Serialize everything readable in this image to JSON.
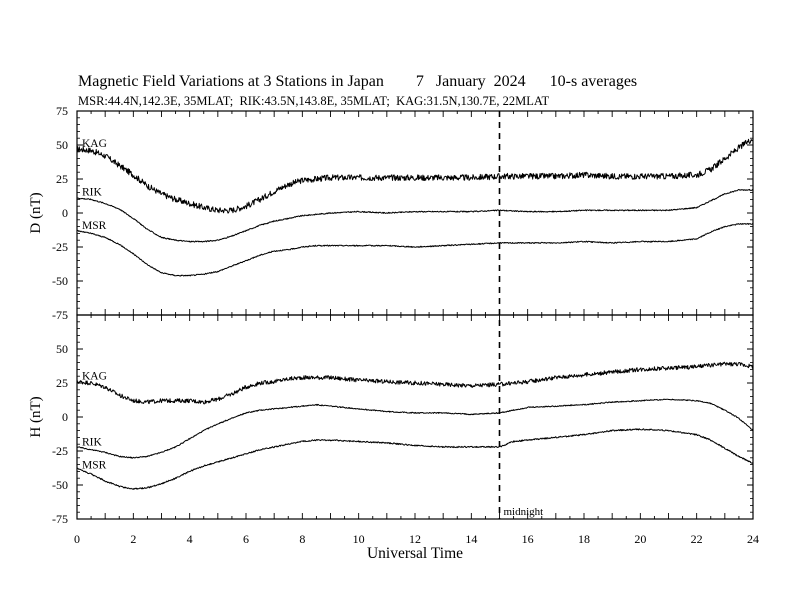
{
  "figure": {
    "title": "Magnetic Field Variations at 3 Stations in Japan        7   January  2024      10-s averages",
    "subtitle": "MSR:44.4N,142.3E, 35MLAT;  RIK:43.5N,143.8E, 35MLAT;  KAG:31.5N,130.7E, 22MLAT"
  },
  "chart_data": [
    {
      "type": "line",
      "panel": "D",
      "ylabel": "D (nT)",
      "ylim": [
        -75,
        75
      ],
      "yticks": [
        -75,
        -50,
        -25,
        0,
        25,
        50,
        75
      ],
      "xlim": [
        0,
        24
      ],
      "xticks": [
        0,
        2,
        4,
        6,
        8,
        10,
        12,
        14,
        16,
        18,
        20,
        22,
        24
      ],
      "grid": false,
      "series": [
        {
          "name": "KAG",
          "noise": 2.2,
          "x": [
            0,
            0.5,
            1,
            1.5,
            2,
            2.5,
            3,
            3.5,
            4,
            4.5,
            5,
            5.5,
            6,
            6.5,
            7,
            7.5,
            8,
            8.5,
            9,
            10,
            11,
            12,
            13,
            14,
            15,
            16,
            17,
            18,
            19,
            20,
            21,
            22,
            22.5,
            23,
            23.5,
            24
          ],
          "values": [
            47,
            46,
            42,
            35,
            28,
            20,
            14,
            10,
            7,
            4,
            2,
            2,
            5,
            10,
            16,
            21,
            24,
            25,
            26,
            26,
            26,
            26,
            26,
            26,
            27,
            27,
            27,
            28,
            27,
            27,
            27,
            28,
            32,
            40,
            48,
            55
          ]
        },
        {
          "name": "RIK",
          "noise": 0.4,
          "x": [
            0,
            0.5,
            1,
            1.5,
            2,
            2.5,
            3,
            3.5,
            4,
            4.5,
            5,
            5.5,
            6,
            6.5,
            7,
            7.5,
            8,
            8.5,
            9,
            10,
            11,
            12,
            13,
            14,
            15,
            16,
            17,
            18,
            19,
            20,
            21,
            22,
            22.5,
            23,
            23.5,
            24
          ],
          "values": [
            11,
            10,
            7,
            3,
            -4,
            -12,
            -18,
            -20,
            -21,
            -21,
            -20,
            -17,
            -13,
            -9,
            -6,
            -4,
            -2,
            -1,
            0,
            1,
            0,
            1,
            1,
            1,
            2,
            1,
            1,
            2,
            2,
            2,
            2,
            4,
            9,
            14,
            17,
            17
          ]
        },
        {
          "name": "MSR",
          "noise": 0.4,
          "x": [
            0,
            0.5,
            1,
            1.5,
            2,
            2.5,
            3,
            3.5,
            4,
            4.5,
            5,
            5.5,
            6,
            6.5,
            7,
            7.5,
            8,
            8.5,
            9,
            10,
            11,
            12,
            13,
            14,
            15,
            16,
            17,
            18,
            19,
            20,
            21,
            22,
            22.5,
            23,
            23.5,
            24
          ],
          "values": [
            -13,
            -15,
            -18,
            -23,
            -30,
            -38,
            -44,
            -46,
            -46,
            -45,
            -43,
            -39,
            -35,
            -31,
            -28,
            -27,
            -25,
            -24,
            -24,
            -24,
            -24,
            -25,
            -24,
            -23,
            -22,
            -22,
            -22,
            -21,
            -22,
            -21,
            -21,
            -19,
            -14,
            -10,
            -8,
            -8
          ]
        }
      ]
    },
    {
      "type": "line",
      "panel": "H",
      "ylabel": "H (nT)",
      "xlabel": "Universal Time",
      "ylim": [
        -75,
        75
      ],
      "yticks": [
        -75,
        -50,
        -25,
        0,
        25,
        50
      ],
      "xlim": [
        0,
        24
      ],
      "xticks": [
        0,
        2,
        4,
        6,
        8,
        10,
        12,
        14,
        16,
        18,
        20,
        22,
        24
      ],
      "grid": false,
      "annotation": {
        "x": 15,
        "text": "midnight",
        "style": "dashed vertical line"
      },
      "series": [
        {
          "name": "KAG",
          "noise": 1.5,
          "x": [
            0,
            0.5,
            1,
            1.5,
            2,
            2.5,
            3,
            3.5,
            4,
            4.5,
            5,
            5.5,
            6,
            6.5,
            7,
            7.5,
            8,
            8.5,
            9,
            10,
            11,
            12,
            13,
            14,
            15,
            16,
            17,
            18,
            19,
            20,
            21,
            22,
            22.5,
            23,
            23.5,
            24
          ],
          "values": [
            26,
            25,
            22,
            16,
            12,
            11,
            12,
            12,
            12,
            11,
            13,
            17,
            22,
            25,
            26,
            28,
            29,
            29,
            29,
            27,
            26,
            25,
            24,
            23,
            24,
            26,
            29,
            31,
            33,
            35,
            36,
            37,
            38,
            39,
            39,
            37
          ]
        },
        {
          "name": "RIK",
          "noise": 0.4,
          "x": [
            0,
            0.5,
            1,
            1.5,
            2,
            2.5,
            3,
            3.5,
            4,
            4.5,
            5,
            5.5,
            6,
            6.5,
            7,
            7.5,
            8,
            8.5,
            9,
            10,
            11,
            12,
            13,
            14,
            15,
            15.5,
            16,
            17,
            18,
            19,
            20,
            21,
            22,
            22.5,
            23,
            23.5,
            24
          ],
          "values": [
            -22,
            -24,
            -26,
            -29,
            -30,
            -29,
            -26,
            -22,
            -16,
            -10,
            -5,
            -1,
            3,
            5,
            6,
            7,
            8,
            9,
            8,
            6,
            4,
            3,
            3,
            2,
            3,
            5,
            7,
            8,
            9,
            11,
            12,
            13,
            12,
            10,
            5,
            -1,
            -10
          ]
        },
        {
          "name": "MSR",
          "noise": 0.5,
          "x": [
            0,
            0.5,
            1,
            1.5,
            2,
            2.5,
            3,
            3.5,
            4,
            4.5,
            5,
            5.5,
            6,
            6.5,
            7,
            7.5,
            8,
            8.5,
            9,
            10,
            11,
            12,
            13,
            14,
            15,
            15.5,
            16,
            17,
            18,
            19,
            20,
            21,
            22,
            22.5,
            23,
            23.5,
            24
          ],
          "values": [
            -38,
            -42,
            -47,
            -51,
            -53,
            -52,
            -49,
            -45,
            -40,
            -36,
            -33,
            -30,
            -27,
            -24,
            -22,
            -20,
            -18,
            -17,
            -17,
            -18,
            -19,
            -21,
            -22,
            -22,
            -22,
            -18,
            -17,
            -15,
            -13,
            -10,
            -9,
            -10,
            -13,
            -17,
            -23,
            -29,
            -34
          ]
        }
      ]
    }
  ]
}
